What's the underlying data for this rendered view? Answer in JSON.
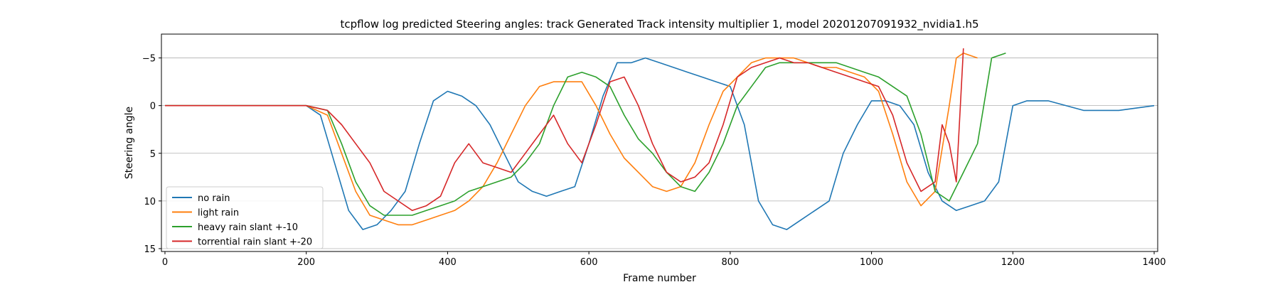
{
  "chart_data": {
    "type": "line",
    "title": "tcpflow log predicted Steering angles: track Generated Track intensity multiplier 1, model 20201207091932_nvidia1.h5",
    "xlabel": "Frame number",
    "ylabel": "Steering angle",
    "xlim": [
      -5,
      1405
    ],
    "ylim": [
      15.3,
      -7.5
    ],
    "y_inverted": true,
    "grid": "horizontal",
    "legend_position": "lower left",
    "xticks": [
      0,
      200,
      400,
      600,
      800,
      1000,
      1200,
      1400
    ],
    "yticks": [
      -5,
      0,
      5,
      10,
      15
    ],
    "xtick_labels": [
      "0",
      "200",
      "400",
      "600",
      "800",
      "1000",
      "1200",
      "1400"
    ],
    "ytick_labels": [
      "−5",
      "0",
      "5",
      "10",
      "15"
    ],
    "series": [
      {
        "name": "no rain",
        "color": "#1f77b4",
        "x": [
          0,
          40,
          80,
          120,
          160,
          200,
          220,
          240,
          260,
          280,
          300,
          320,
          340,
          360,
          380,
          400,
          420,
          440,
          460,
          480,
          500,
          520,
          540,
          560,
          580,
          600,
          620,
          640,
          660,
          680,
          700,
          720,
          740,
          760,
          780,
          800,
          820,
          840,
          860,
          880,
          900,
          920,
          940,
          960,
          980,
          1000,
          1020,
          1040,
          1060,
          1080,
          1100,
          1120,
          1140,
          1160,
          1180,
          1200,
          1220,
          1250,
          1300,
          1350,
          1400
        ],
        "y": [
          0,
          0,
          0,
          0,
          0,
          0,
          1,
          6,
          11,
          13,
          12.5,
          11,
          9,
          4,
          -0.5,
          -1.5,
          -1,
          0,
          2,
          5,
          8,
          9,
          9.5,
          9,
          8.5,
          4,
          -1,
          -4.5,
          -4.5,
          -5,
          -4.5,
          -4,
          -3.5,
          -3,
          -2.5,
          -2,
          2,
          10,
          12.5,
          13,
          12,
          11,
          10,
          5,
          2,
          -0.5,
          -0.5,
          0,
          2,
          7,
          10,
          11,
          10.5,
          10,
          8,
          0,
          -0.5,
          -0.5,
          0.5,
          0.5,
          0
        ]
      },
      {
        "name": "light rain",
        "color": "#ff7f0e",
        "x": [
          0,
          40,
          80,
          120,
          160,
          200,
          230,
          250,
          270,
          290,
          310,
          330,
          350,
          370,
          390,
          410,
          430,
          450,
          470,
          490,
          510,
          530,
          550,
          570,
          590,
          610,
          630,
          650,
          670,
          690,
          710,
          730,
          750,
          770,
          790,
          810,
          830,
          850,
          870,
          890,
          910,
          930,
          950,
          970,
          990,
          1010,
          1030,
          1050,
          1070,
          1090,
          1110,
          1120,
          1130,
          1150
        ],
        "y": [
          0,
          0,
          0,
          0,
          0,
          0,
          1,
          5,
          9,
          11.5,
          12,
          12.5,
          12.5,
          12,
          11.5,
          11,
          10,
          8.5,
          6,
          3,
          0,
          -2,
          -2.5,
          -2.5,
          -2.5,
          0,
          3,
          5.5,
          7,
          8.5,
          9,
          8.5,
          6,
          2,
          -1.5,
          -3,
          -4.5,
          -5,
          -5,
          -5,
          -4.5,
          -4,
          -4,
          -3.5,
          -3,
          -1.5,
          3,
          8,
          10.5,
          9,
          0,
          -5,
          -5.5,
          -5
        ]
      },
      {
        "name": "heavy rain slant +-10",
        "color": "#2ca02c",
        "x": [
          0,
          40,
          80,
          120,
          160,
          200,
          230,
          250,
          270,
          290,
          310,
          330,
          350,
          370,
          390,
          410,
          430,
          450,
          470,
          490,
          510,
          530,
          550,
          570,
          590,
          610,
          630,
          650,
          670,
          690,
          710,
          730,
          750,
          770,
          790,
          810,
          830,
          850,
          870,
          890,
          910,
          930,
          950,
          970,
          990,
          1010,
          1030,
          1050,
          1070,
          1090,
          1110,
          1130,
          1150,
          1170,
          1190
        ],
        "y": [
          0,
          0,
          0,
          0,
          0,
          0,
          0.5,
          4,
          8,
          10.5,
          11.5,
          11.5,
          11.5,
          11,
          10.5,
          10,
          9,
          8.5,
          8,
          7.5,
          6,
          4,
          0,
          -3,
          -3.5,
          -3,
          -2,
          1,
          3.5,
          5,
          7,
          8.5,
          9,
          7,
          4,
          0,
          -2,
          -4,
          -4.5,
          -4.5,
          -4.5,
          -4.5,
          -4.5,
          -4,
          -3.5,
          -3,
          -2,
          -1,
          3,
          9,
          10,
          7,
          4,
          -5,
          -5.5
        ]
      },
      {
        "name": "torrential rain slant +-20",
        "color": "#d62728",
        "x": [
          0,
          40,
          80,
          120,
          160,
          200,
          230,
          250,
          270,
          290,
          310,
          330,
          350,
          370,
          390,
          410,
          430,
          450,
          470,
          490,
          510,
          530,
          550,
          570,
          590,
          610,
          630,
          650,
          670,
          690,
          710,
          730,
          750,
          770,
          790,
          810,
          830,
          850,
          870,
          890,
          910,
          930,
          950,
          970,
          990,
          1010,
          1030,
          1050,
          1070,
          1090,
          1100,
          1110,
          1120,
          1130
        ],
        "y": [
          0,
          0,
          0,
          0,
          0,
          0,
          0.5,
          2,
          4,
          6,
          9,
          10,
          11,
          10.5,
          9.5,
          6,
          4,
          6,
          6.5,
          7,
          5,
          3,
          1,
          4,
          6,
          2,
          -2.5,
          -3,
          0,
          4,
          7,
          8,
          7.5,
          6,
          2,
          -3,
          -4,
          -4.5,
          -5,
          -4.5,
          -4.5,
          -4,
          -3.5,
          -3,
          -2.5,
          -2,
          1,
          6,
          9,
          8,
          2,
          4,
          8,
          -6
        ]
      }
    ]
  }
}
